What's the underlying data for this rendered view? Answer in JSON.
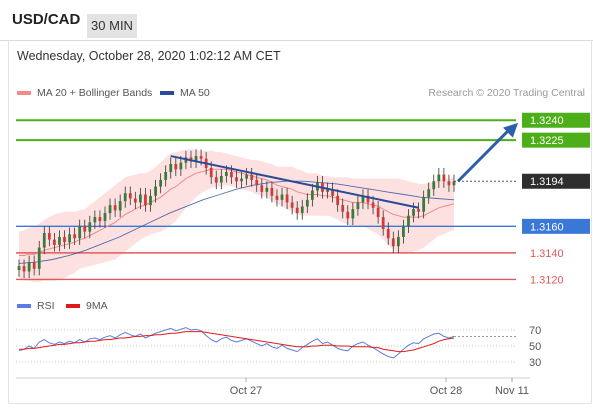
{
  "header": {
    "symbol": "USD/CAD",
    "timeframe": "30 MIN",
    "datetime": "Wednesday, October 28, 2020 1:02:12 AM CET",
    "credit": "Research © 2020 Trading Central"
  },
  "legend": {
    "ma20_label": "MA 20 + Bollinger Bands",
    "ma50_label": "MA 50",
    "rsi_label": "RSI",
    "ma9_label": "9MA"
  },
  "colors": {
    "bull": "#3a7a3a",
    "bear": "#d23a3a",
    "ma20": "#f08a8a",
    "ma50": "#2b4a9a",
    "band": "#fde1e1",
    "resistance": "#4caf1a",
    "support_blue": "#3a78d8",
    "support_red": "#e05a5a",
    "arrow": "#2b5fa8",
    "rsi": "#5a7ee0",
    "rsi_ma": "#e01a1a"
  },
  "chart_data": [
    {
      "type": "candlestick",
      "title": "USD/CAD",
      "timeframe": "30 MIN",
      "x_tick_labels": [
        "Oct 27",
        "Oct 28",
        "Nov 11"
      ],
      "last_price": 1.3194,
      "ylim": [
        1.3112,
        1.3253
      ],
      "levels": [
        {
          "value": 1.324,
          "kind": "resistance",
          "color": "#4caf1a",
          "label": "1.3240"
        },
        {
          "value": 1.3225,
          "kind": "resistance",
          "color": "#4caf1a",
          "label": "1.3225"
        },
        {
          "value": 1.316,
          "kind": "support",
          "color": "#3a78d8",
          "label": "1.3160"
        },
        {
          "value": 1.314,
          "kind": "support",
          "color": "#e05a5a",
          "label": "1.3140"
        },
        {
          "value": 1.312,
          "kind": "support",
          "color": "#e05a5a",
          "label": "1.3120"
        }
      ],
      "closes": [
        1.313,
        1.3126,
        1.3133,
        1.3128,
        1.3144,
        1.3155,
        1.315,
        1.3146,
        1.3152,
        1.3148,
        1.3154,
        1.3151,
        1.316,
        1.3156,
        1.3163,
        1.3167,
        1.3164,
        1.317,
        1.3176,
        1.3172,
        1.3179,
        1.3185,
        1.3181,
        1.3178,
        1.3184,
        1.3176,
        1.3183,
        1.319,
        1.3195,
        1.3201,
        1.3207,
        1.3203,
        1.3208,
        1.3212,
        1.3209,
        1.3213,
        1.3211,
        1.3204,
        1.3197,
        1.3193,
        1.3198,
        1.3201,
        1.3197,
        1.3194,
        1.3196,
        1.3199,
        1.3195,
        1.3191,
        1.3186,
        1.3189,
        1.3183,
        1.318,
        1.3184,
        1.3178,
        1.3174,
        1.317,
        1.3175,
        1.318,
        1.3187,
        1.3193,
        1.3186,
        1.3188,
        1.3183,
        1.3176,
        1.3171,
        1.3166,
        1.3173,
        1.3178,
        1.3183,
        1.3178,
        1.3174,
        1.3167,
        1.3158,
        1.3151,
        1.3145,
        1.3152,
        1.316,
        1.3168,
        1.3173,
        1.3171,
        1.3182,
        1.3188,
        1.3194,
        1.3199,
        1.3194,
        1.3191,
        1.3194
      ],
      "ma20": [
        1.3138,
        1.3138,
        1.3139,
        1.3139,
        1.314,
        1.3142,
        1.3143,
        1.3144,
        1.3145,
        1.3146,
        1.3147,
        1.3148,
        1.315,
        1.3151,
        1.3153,
        1.3155,
        1.3157,
        1.3159,
        1.3161,
        1.3163,
        1.3166,
        1.3169,
        1.3171,
        1.3173,
        1.3175,
        1.3176,
        1.3178,
        1.318,
        1.3182,
        1.3185,
        1.3188,
        1.319,
        1.3193,
        1.3196,
        1.3198,
        1.32,
        1.3201,
        1.3202,
        1.3203,
        1.3203,
        1.3203,
        1.3203,
        1.3202,
        1.3201,
        1.32,
        1.3199,
        1.3198,
        1.3197,
        1.3196,
        1.3195,
        1.3193,
        1.3191,
        1.319,
        1.3189,
        1.3188,
        1.3186,
        1.3185,
        1.3184,
        1.3184,
        1.3184,
        1.3183,
        1.3183,
        1.3182,
        1.3181,
        1.318,
        1.3179,
        1.3178,
        1.3178,
        1.3178,
        1.3177,
        1.3176,
        1.3175,
        1.3173,
        1.3171,
        1.3169,
        1.3168,
        1.3167,
        1.3167,
        1.3167,
        1.3167,
        1.3168,
        1.317,
        1.3172,
        1.3174,
        1.3175,
        1.3176,
        1.3177
      ],
      "band_width": [
        0.0018,
        0.0019,
        0.002,
        0.0021,
        0.0022,
        0.0023,
        0.0024,
        0.0025,
        0.0025,
        0.0025,
        0.0024,
        0.0023,
        0.0022,
        0.0022,
        0.0023,
        0.0024,
        0.0025,
        0.0026,
        0.0027,
        0.0028,
        0.0028,
        0.0028,
        0.0027,
        0.0026,
        0.0025,
        0.0024,
        0.0024,
        0.0025,
        0.0026,
        0.0027,
        0.0027,
        0.0026,
        0.0024,
        0.0022,
        0.002,
        0.0018,
        0.0016,
        0.0015,
        0.0014,
        0.0013,
        0.0013,
        0.0012,
        0.0012,
        0.0012,
        0.0012,
        0.0012,
        0.0012,
        0.0013,
        0.0013,
        0.0013,
        0.0014,
        0.0014,
        0.0015,
        0.0016,
        0.0017,
        0.0017,
        0.0017,
        0.0016,
        0.0016,
        0.0016,
        0.0015,
        0.0015,
        0.0015,
        0.0016,
        0.0017,
        0.0018,
        0.0018,
        0.0018,
        0.0018,
        0.0019,
        0.002,
        0.0021,
        0.0023,
        0.0025,
        0.0027,
        0.0028,
        0.0028,
        0.0027,
        0.0026,
        0.0025,
        0.0024,
        0.0023,
        0.0022,
        0.0021,
        0.0021,
        0.002,
        0.002
      ],
      "ma50_start": 1.3132,
      "ma50": [
        1.3133,
        1.3135,
        1.3138,
        1.3142,
        1.3147,
        1.3152,
        1.3158,
        1.3164,
        1.317,
        1.3175,
        1.318,
        1.3184,
        1.3188,
        1.3191,
        1.3193,
        1.3194,
        1.3194,
        1.3193,
        1.3192,
        1.319,
        1.3188,
        1.3186,
        1.3184,
        1.3182,
        1.3181,
        1.318
      ],
      "trendline": {
        "from_index": 30,
        "from_value": 1.3213,
        "to_index": 79,
        "to_value": 1.3174
      },
      "projection": {
        "from_index": 86,
        "from_value": 1.3194,
        "to_value": 1.3238
      }
    },
    {
      "type": "line",
      "title": "RSI",
      "y_tick_labels": [
        "70",
        "50",
        "30"
      ],
      "ylim": [
        20,
        80
      ],
      "series": [
        {
          "name": "RSI",
          "values": [
            44,
            46,
            50,
            47,
            55,
            58,
            54,
            52,
            55,
            53,
            56,
            54,
            58,
            55,
            59,
            60,
            58,
            61,
            63,
            60,
            64,
            67,
            64,
            62,
            65,
            60,
            63,
            66,
            68,
            70,
            72,
            69,
            71,
            73,
            70,
            71,
            69,
            63,
            58,
            55,
            59,
            61,
            57,
            55,
            57,
            59,
            56,
            53,
            50,
            53,
            49,
            47,
            51,
            47,
            45,
            43,
            48,
            52,
            56,
            59,
            53,
            55,
            51,
            47,
            45,
            44,
            50,
            53,
            55,
            51,
            48,
            44,
            40,
            37,
            35,
            40,
            46,
            51,
            54,
            53,
            59,
            62,
            65,
            66,
            62,
            60,
            62
          ]
        },
        {
          "name": "9MA",
          "values": [
            46,
            46,
            47,
            47,
            48,
            49,
            50,
            51,
            52,
            52,
            53,
            54,
            54,
            55,
            56,
            56,
            57,
            58,
            58,
            59,
            60,
            60,
            61,
            62,
            62,
            63,
            63,
            64,
            64,
            65,
            66,
            66,
            67,
            68,
            68,
            68,
            68,
            67,
            66,
            65,
            64,
            63,
            62,
            61,
            60,
            59,
            58,
            57,
            56,
            55,
            54,
            53,
            52,
            51,
            50,
            49,
            49,
            49,
            50,
            50,
            51,
            51,
            51,
            50,
            50,
            50,
            49,
            49,
            49,
            49,
            48,
            48,
            46,
            45,
            44,
            43,
            43,
            44,
            45,
            47,
            49,
            51,
            53,
            56,
            58,
            59,
            60
          ]
        }
      ]
    }
  ]
}
